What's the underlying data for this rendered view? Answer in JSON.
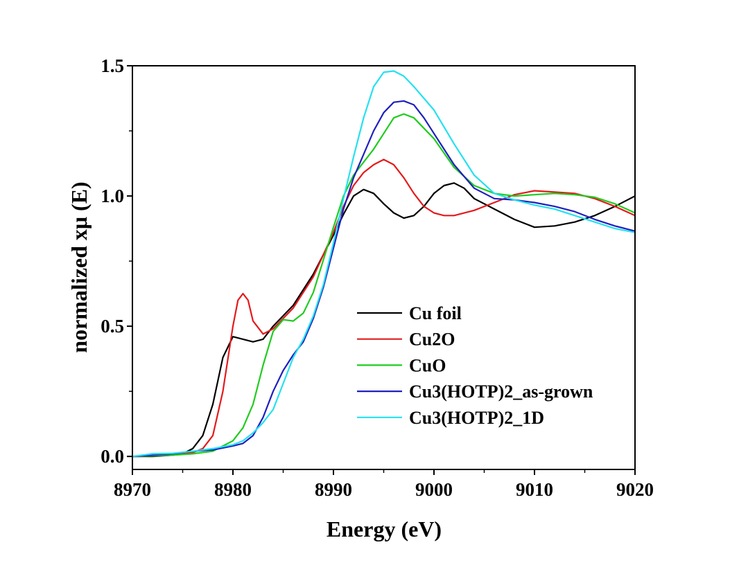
{
  "chart_data": {
    "type": "line",
    "xlabel": "Energy (eV)",
    "ylabel": "normalized xμ (E)",
    "xlim": [
      8970,
      9020
    ],
    "ylim": [
      -0.05,
      1.5
    ],
    "xticks": [
      8970,
      8980,
      8990,
      9000,
      9010,
      9020
    ],
    "xtick_labels": [
      "8970",
      "8980",
      "8990",
      "9000",
      "9010",
      "9020"
    ],
    "yticks": [
      0.0,
      0.5,
      1.0,
      1.5
    ],
    "ytick_labels": [
      "0.0",
      "0.5",
      "1.0",
      "1.5"
    ],
    "grid": false,
    "legend_position": "center-right",
    "series": [
      {
        "name": "Cu foil",
        "color": "#000000",
        "points": [
          [
            8970,
            0.0
          ],
          [
            8972,
            0.0
          ],
          [
            8974,
            0.005
          ],
          [
            8975,
            0.01
          ],
          [
            8976,
            0.03
          ],
          [
            8977,
            0.08
          ],
          [
            8978,
            0.2
          ],
          [
            8979,
            0.38
          ],
          [
            8980,
            0.46
          ],
          [
            8981,
            0.45
          ],
          [
            8982,
            0.44
          ],
          [
            8983,
            0.45
          ],
          [
            8984,
            0.5
          ],
          [
            8986,
            0.58
          ],
          [
            8988,
            0.7
          ],
          [
            8990,
            0.85
          ],
          [
            8991,
            0.93
          ],
          [
            8992,
            1.0
          ],
          [
            8993,
            1.025
          ],
          [
            8994,
            1.01
          ],
          [
            8995,
            0.97
          ],
          [
            8996,
            0.935
          ],
          [
            8997,
            0.915
          ],
          [
            8998,
            0.925
          ],
          [
            8999,
            0.96
          ],
          [
            9000,
            1.01
          ],
          [
            9001,
            1.04
          ],
          [
            9002,
            1.05
          ],
          [
            9003,
            1.03
          ],
          [
            9004,
            0.99
          ],
          [
            9006,
            0.95
          ],
          [
            9008,
            0.91
          ],
          [
            9010,
            0.88
          ],
          [
            9012,
            0.885
          ],
          [
            9014,
            0.9
          ],
          [
            9016,
            0.925
          ],
          [
            9018,
            0.96
          ],
          [
            9020,
            1.0
          ]
        ]
      },
      {
        "name": "Cu2O",
        "color": "#e41a1c",
        "points": [
          [
            8970,
            0.0
          ],
          [
            8974,
            0.005
          ],
          [
            8976,
            0.015
          ],
          [
            8977,
            0.03
          ],
          [
            8978,
            0.08
          ],
          [
            8979,
            0.25
          ],
          [
            8980,
            0.5
          ],
          [
            8980.5,
            0.6
          ],
          [
            8981,
            0.625
          ],
          [
            8981.5,
            0.6
          ],
          [
            8982,
            0.52
          ],
          [
            8983,
            0.47
          ],
          [
            8984,
            0.49
          ],
          [
            8986,
            0.57
          ],
          [
            8988,
            0.69
          ],
          [
            8990,
            0.86
          ],
          [
            8991,
            0.96
          ],
          [
            8992,
            1.04
          ],
          [
            8993,
            1.09
          ],
          [
            8994,
            1.12
          ],
          [
            8995,
            1.14
          ],
          [
            8996,
            1.12
          ],
          [
            8997,
            1.07
          ],
          [
            8998,
            1.01
          ],
          [
            8999,
            0.96
          ],
          [
            9000,
            0.935
          ],
          [
            9001,
            0.925
          ],
          [
            9002,
            0.925
          ],
          [
            9004,
            0.945
          ],
          [
            9006,
            0.975
          ],
          [
            9008,
            1.005
          ],
          [
            9010,
            1.02
          ],
          [
            9012,
            1.015
          ],
          [
            9014,
            1.01
          ],
          [
            9016,
            0.99
          ],
          [
            9018,
            0.96
          ],
          [
            9020,
            0.925
          ]
        ]
      },
      {
        "name": "CuO",
        "color": "#1ecc1e",
        "points": [
          [
            8970,
            0.0
          ],
          [
            8974,
            0.005
          ],
          [
            8976,
            0.01
          ],
          [
            8978,
            0.02
          ],
          [
            8979,
            0.04
          ],
          [
            8980,
            0.06
          ],
          [
            8981,
            0.11
          ],
          [
            8982,
            0.2
          ],
          [
            8983,
            0.35
          ],
          [
            8984,
            0.48
          ],
          [
            8985,
            0.525
          ],
          [
            8986,
            0.52
          ],
          [
            8987,
            0.55
          ],
          [
            8988,
            0.63
          ],
          [
            8990,
            0.88
          ],
          [
            8991,
            1.0
          ],
          [
            8992,
            1.08
          ],
          [
            8993,
            1.13
          ],
          [
            8994,
            1.18
          ],
          [
            8995,
            1.24
          ],
          [
            8996,
            1.3
          ],
          [
            8997,
            1.315
          ],
          [
            8998,
            1.3
          ],
          [
            9000,
            1.22
          ],
          [
            9002,
            1.11
          ],
          [
            9004,
            1.04
          ],
          [
            9006,
            1.01
          ],
          [
            9008,
            1.0
          ],
          [
            9010,
            1.005
          ],
          [
            9012,
            1.01
          ],
          [
            9014,
            1.005
          ],
          [
            9016,
            0.995
          ],
          [
            9018,
            0.97
          ],
          [
            9020,
            0.935
          ]
        ]
      },
      {
        "name": "Cu3(HOTP)2_as-grown",
        "color": "#1f1fbf",
        "points": [
          [
            8970,
            0.0
          ],
          [
            8972,
            0.005
          ],
          [
            8974,
            0.01
          ],
          [
            8976,
            0.02
          ],
          [
            8978,
            0.025
          ],
          [
            8980,
            0.04
          ],
          [
            8981,
            0.05
          ],
          [
            8982,
            0.08
          ],
          [
            8983,
            0.15
          ],
          [
            8984,
            0.25
          ],
          [
            8985,
            0.33
          ],
          [
            8986,
            0.39
          ],
          [
            8987,
            0.44
          ],
          [
            8988,
            0.53
          ],
          [
            8989,
            0.65
          ],
          [
            8990,
            0.8
          ],
          [
            8991,
            0.95
          ],
          [
            8992,
            1.07
          ],
          [
            8993,
            1.16
          ],
          [
            8994,
            1.25
          ],
          [
            8995,
            1.32
          ],
          [
            8996,
            1.36
          ],
          [
            8997,
            1.365
          ],
          [
            8998,
            1.35
          ],
          [
            8999,
            1.3
          ],
          [
            9000,
            1.24
          ],
          [
            9002,
            1.12
          ],
          [
            9004,
            1.03
          ],
          [
            9006,
            0.99
          ],
          [
            9008,
            0.985
          ],
          [
            9010,
            0.975
          ],
          [
            9012,
            0.96
          ],
          [
            9014,
            0.94
          ],
          [
            9016,
            0.91
          ],
          [
            9018,
            0.885
          ],
          [
            9020,
            0.865
          ]
        ]
      },
      {
        "name": "Cu3(HOTP)2_1D",
        "color": "#24e0f0",
        "points": [
          [
            8970,
            0.0
          ],
          [
            8972,
            0.01
          ],
          [
            8974,
            0.012
          ],
          [
            8976,
            0.02
          ],
          [
            8978,
            0.03
          ],
          [
            8980,
            0.045
          ],
          [
            8981,
            0.06
          ],
          [
            8982,
            0.09
          ],
          [
            8983,
            0.13
          ],
          [
            8984,
            0.18
          ],
          [
            8985,
            0.28
          ],
          [
            8986,
            0.38
          ],
          [
            8987,
            0.45
          ],
          [
            8988,
            0.54
          ],
          [
            8989,
            0.66
          ],
          [
            8990,
            0.82
          ],
          [
            8991,
            0.99
          ],
          [
            8992,
            1.15
          ],
          [
            8993,
            1.3
          ],
          [
            8994,
            1.42
          ],
          [
            8995,
            1.475
          ],
          [
            8996,
            1.48
          ],
          [
            8997,
            1.46
          ],
          [
            8998,
            1.42
          ],
          [
            9000,
            1.33
          ],
          [
            9002,
            1.2
          ],
          [
            9004,
            1.08
          ],
          [
            9006,
            1.01
          ],
          [
            9008,
            0.985
          ],
          [
            9010,
            0.965
          ],
          [
            9012,
            0.95
          ],
          [
            9014,
            0.925
          ],
          [
            9016,
            0.9
          ],
          [
            9018,
            0.875
          ],
          [
            9020,
            0.86
          ]
        ]
      }
    ]
  }
}
